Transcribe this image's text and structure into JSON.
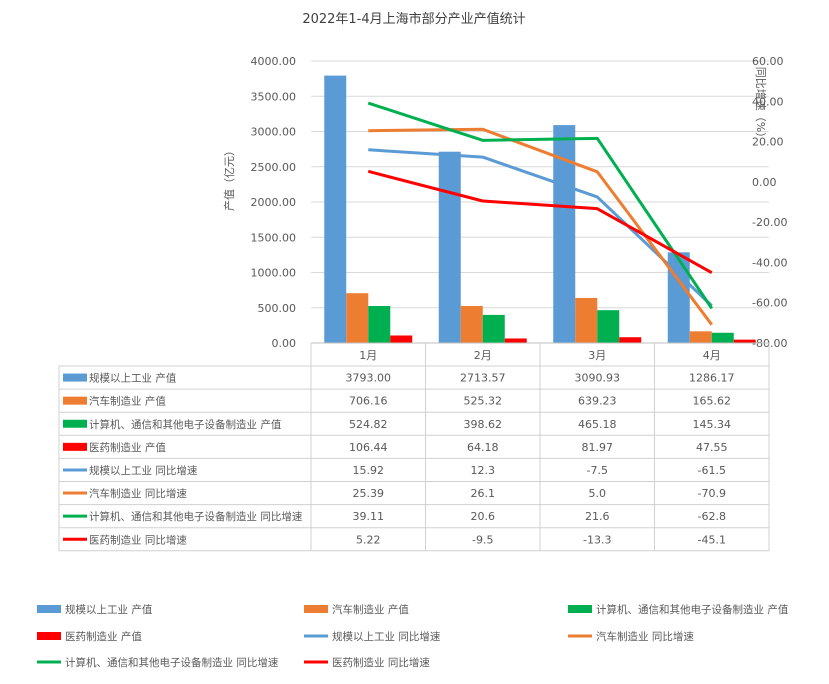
{
  "chart_data": {
    "type": "bar",
    "title": "2022年1-4月上海市部分产业产值统计",
    "ylabel": "产值（亿元）",
    "y2label": "同比增速（%）",
    "ylim": [
      0,
      4000
    ],
    "y2lim": [
      -80,
      60
    ],
    "yticks": [
      "0.00",
      "500.00",
      "1000.00",
      "1500.00",
      "2000.00",
      "2500.00",
      "3000.00",
      "3500.00",
      "4000.00"
    ],
    "y2ticks": [
      "-80.00",
      "-60.00",
      "-40.00",
      "-20.00",
      "0.00",
      "20.00",
      "40.00",
      "60.00"
    ],
    "categories": [
      "1月",
      "2月",
      "3月",
      "4月"
    ],
    "grid": true,
    "legend_position": "bottom",
    "series": [
      {
        "name": "规模以上工业 产值",
        "kind": "bar",
        "axis": "left",
        "color": "#5b9bd5",
        "values": [
          3793.0,
          2713.57,
          3090.93,
          1286.17
        ],
        "labels": [
          "3793.00",
          "2713.57",
          "3090.93",
          "1286.17"
        ]
      },
      {
        "name": "汽车制造业 产值",
        "kind": "bar",
        "axis": "left",
        "color": "#ed7d31",
        "values": [
          706.16,
          525.32,
          639.23,
          165.62
        ],
        "labels": [
          "706.16",
          "525.32",
          "639.23",
          "165.62"
        ]
      },
      {
        "name": "计算机、通信和其他电子设备制造业 产值",
        "kind": "bar",
        "axis": "left",
        "color": "#00b050",
        "values": [
          524.82,
          398.62,
          465.18,
          145.34
        ],
        "labels": [
          "524.82",
          "398.62",
          "465.18",
          "145.34"
        ]
      },
      {
        "name": "医药制造业 产值",
        "kind": "bar",
        "axis": "left",
        "color": "#ff0000",
        "values": [
          106.44,
          64.18,
          81.97,
          47.55
        ],
        "labels": [
          "106.44",
          "64.18",
          "81.97",
          "47.55"
        ]
      },
      {
        "name": "规模以上工业 同比增速",
        "kind": "line",
        "axis": "right",
        "color": "#5b9bd5",
        "values": [
          15.92,
          12.3,
          -7.5,
          -61.5
        ],
        "labels": [
          "15.92",
          "12.3",
          "-7.5",
          "-61.5"
        ]
      },
      {
        "name": "汽车制造业 同比增速",
        "kind": "line",
        "axis": "right",
        "color": "#ed7d31",
        "values": [
          25.39,
          26.1,
          5.0,
          -70.9
        ],
        "labels": [
          "25.39",
          "26.1",
          "5.0",
          "-70.9"
        ]
      },
      {
        "name": "计算机、通信和其他电子设备制造业 同比增速",
        "kind": "line",
        "axis": "right",
        "color": "#00b050",
        "values": [
          39.11,
          20.6,
          21.6,
          -62.8
        ],
        "labels": [
          "39.11",
          "20.6",
          "21.6",
          "-62.8"
        ]
      },
      {
        "name": "医药制造业 同比增速",
        "kind": "line",
        "axis": "right",
        "color": "#ff0000",
        "values": [
          5.22,
          -9.5,
          -13.3,
          -45.1
        ],
        "labels": [
          "5.22",
          "-9.5",
          "-13.3",
          "-45.1"
        ]
      }
    ]
  }
}
